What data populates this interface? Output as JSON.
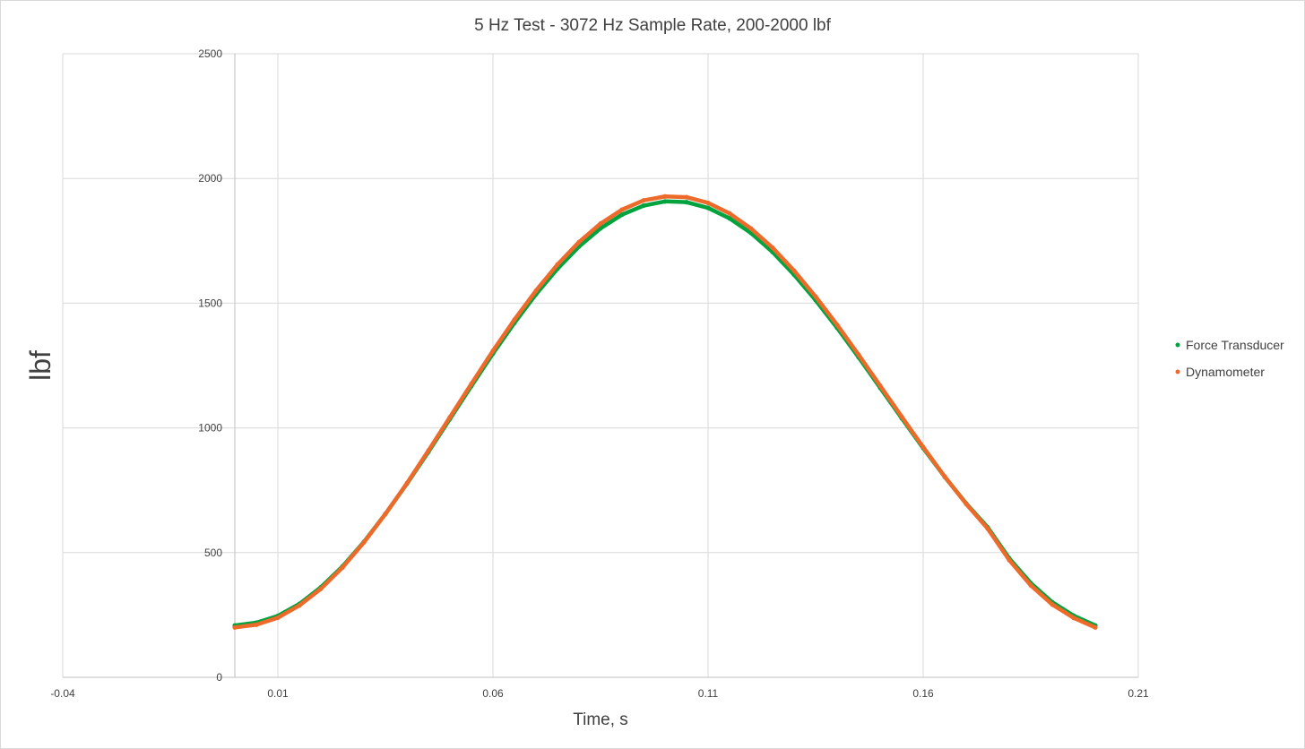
{
  "chart_data": {
    "type": "scatter",
    "title": "5 Hz Test - 3072 Hz Sample Rate, 200-2000 lbf",
    "xlabel": "Time, s",
    "ylabel": "lbf",
    "xlim": [
      -0.04,
      0.21
    ],
    "ylim": [
      0,
      2500
    ],
    "x_ticks": [
      "-0.04",
      "0.01",
      "0.06",
      "0.11",
      "0.16",
      "0.21"
    ],
    "y_ticks": [
      "0",
      "500",
      "1000",
      "1500",
      "2000",
      "2500"
    ],
    "grid": true,
    "legend_position": "right",
    "series": [
      {
        "name": "Force Transducer",
        "color": "#00a33e",
        "x": [
          0.0,
          0.005,
          0.01,
          0.015,
          0.02,
          0.025,
          0.03,
          0.035,
          0.04,
          0.045,
          0.05,
          0.055,
          0.06,
          0.065,
          0.07,
          0.075,
          0.08,
          0.085,
          0.09,
          0.095,
          0.1,
          0.105,
          0.11,
          0.115,
          0.12,
          0.125,
          0.13,
          0.135,
          0.14,
          0.145,
          0.15,
          0.155,
          0.16,
          0.165,
          0.17,
          0.175,
          0.18,
          0.185,
          0.19,
          0.195,
          0.2
        ],
        "y": [
          208,
          219,
          246,
          294,
          361,
          444,
          543,
          655,
          776,
          904,
          1036,
          1168,
          1298,
          1421,
          1536,
          1638,
          1727,
          1800,
          1855,
          1891,
          1908,
          1905,
          1882,
          1840,
          1781,
          1705,
          1614,
          1512,
          1401,
          1283,
          1161,
          1039,
          919,
          804,
          697,
          601,
          477,
          378,
          301,
          247,
          208
        ]
      },
      {
        "name": "Dynamometer",
        "color": "#ed6a2b",
        "x": [
          0.0,
          0.005,
          0.01,
          0.015,
          0.02,
          0.025,
          0.03,
          0.035,
          0.04,
          0.045,
          0.05,
          0.055,
          0.06,
          0.065,
          0.07,
          0.075,
          0.08,
          0.085,
          0.09,
          0.095,
          0.1,
          0.105,
          0.11,
          0.115,
          0.12,
          0.125,
          0.13,
          0.135,
          0.14,
          0.145,
          0.15,
          0.155,
          0.16,
          0.165,
          0.17,
          0.175,
          0.18,
          0.185,
          0.19,
          0.195,
          0.2
        ],
        "y": [
          200,
          211,
          239,
          288,
          355,
          440,
          541,
          655,
          778,
          909,
          1043,
          1177,
          1309,
          1434,
          1550,
          1655,
          1745,
          1819,
          1875,
          1912,
          1928,
          1925,
          1902,
          1860,
          1799,
          1722,
          1630,
          1526,
          1413,
          1293,
          1169,
          1045,
          923,
          805,
          695,
          596,
          470,
          369,
          292,
          238,
          200
        ]
      }
    ]
  }
}
